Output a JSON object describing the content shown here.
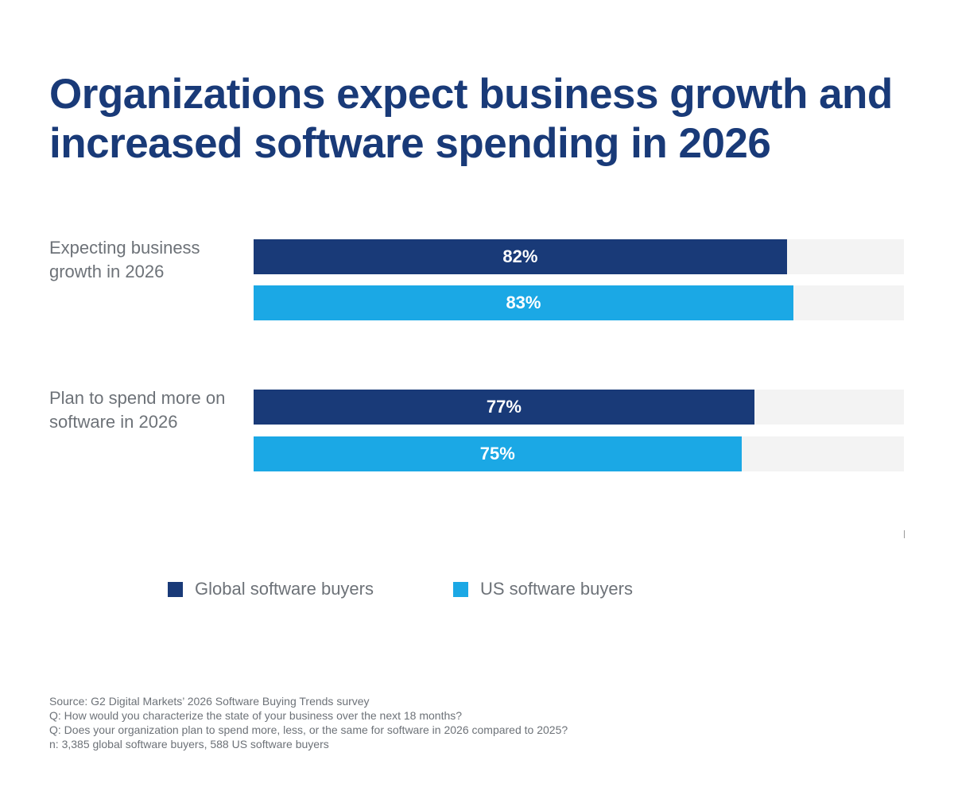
{
  "chart_data": {
    "type": "bar",
    "orientation": "horizontal",
    "title": "Organizations expect business growth and increased software spending in 2026",
    "categories": [
      "Expecting business growth in 2026",
      "Plan to spend more on software in 2026"
    ],
    "series": [
      {
        "name": "Global software buyers",
        "color": "#193a78",
        "values": [
          82,
          77
        ]
      },
      {
        "name": "US software buyers",
        "color": "#1ba8e5",
        "values": [
          83,
          75
        ]
      }
    ],
    "value_suffix": "%",
    "xlim": [
      0,
      100
    ],
    "grid": false,
    "legend_placement": "bottom",
    "track_color": "#f3f3f3"
  },
  "footer": {
    "lines": [
      "Source: G2 Digital Markets’ 2026 Software Buying Trends survey",
      "Q: How would you characterize the state of your business over the next 18 months?",
      "Q: Does your organization plan to spend more, less, or the same for software in 2026 compared to 2025?",
      "n: 3,385 global software buyers, 588 US software buyers"
    ]
  }
}
